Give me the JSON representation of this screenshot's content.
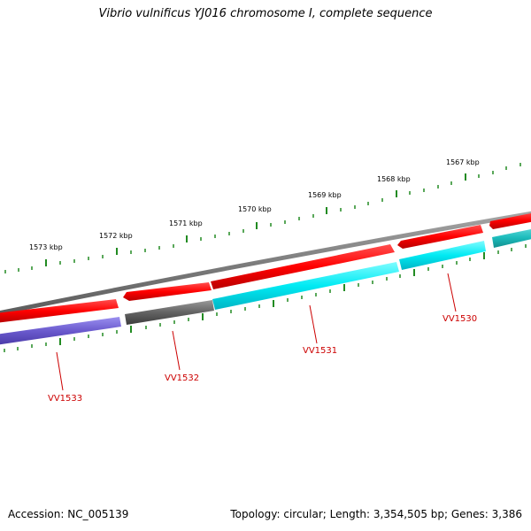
{
  "title": "Vibrio vulnificus YJ016 chromosome I, complete sequence",
  "footer": {
    "accession": "Accession: NC_005139",
    "summary": "Topology: circular; Length: 3,354,505 bp; Genes: 3,386"
  },
  "scale_labels": [
    "1567 kbp",
    "1568 kbp",
    "1569 kbp",
    "1570 kbp",
    "1571 kbp",
    "1572 kbp",
    "1573 kbp"
  ],
  "genes": [
    {
      "label": "VV1530"
    },
    {
      "label": "VV1531"
    },
    {
      "label": "VV1532"
    },
    {
      "label": "VV1533"
    }
  ],
  "colors": {
    "backbone": "#808080",
    "forward_feature": "#ff0000",
    "cds_cyan": "#00e6f0",
    "cds_gray": "#606060",
    "cds_blue": "#6a5acd",
    "tick": "#228b22",
    "gene_label": "#cc0000"
  }
}
